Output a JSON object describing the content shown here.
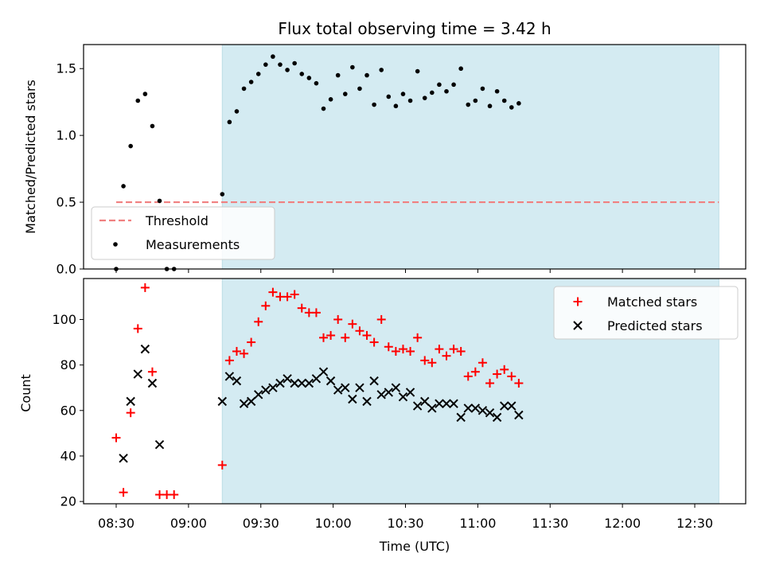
{
  "chart_data": [
    {
      "type": "scatter",
      "title": "Flux total observing time = 3.42 h",
      "ylabel": "Matched/Predicted stars",
      "ylim": [
        0,
        1.68
      ],
      "yticks": [
        "0.0",
        "0.5",
        "1.0",
        "1.5"
      ],
      "threshold": {
        "name": "Threshold",
        "value": 0.5,
        "x_start": "08:30",
        "x_end": "12:40",
        "color": "#f08080"
      },
      "shaded_interval": {
        "start": "09:14",
        "end": "12:40",
        "color": "#d4ebf2"
      },
      "legend": {
        "placement": "lower-left",
        "entries": [
          "Threshold",
          "Measurements"
        ]
      },
      "series": [
        {
          "name": "Measurements",
          "color": "#000000",
          "marker": "dot",
          "points": [
            [
              "08:30",
              0.0
            ],
            [
              "08:33",
              0.62
            ],
            [
              "08:36",
              0.92
            ],
            [
              "08:39",
              1.26
            ],
            [
              "08:42",
              1.31
            ],
            [
              "08:45",
              1.07
            ],
            [
              "08:48",
              0.51
            ],
            [
              "08:51",
              0.0
            ],
            [
              "08:54",
              0.0
            ],
            [
              "09:14",
              0.56
            ],
            [
              "09:17",
              1.1
            ],
            [
              "09:20",
              1.18
            ],
            [
              "09:23",
              1.35
            ],
            [
              "09:26",
              1.4
            ],
            [
              "09:29",
              1.46
            ],
            [
              "09:32",
              1.53
            ],
            [
              "09:35",
              1.59
            ],
            [
              "09:38",
              1.53
            ],
            [
              "09:41",
              1.49
            ],
            [
              "09:44",
              1.54
            ],
            [
              "09:47",
              1.46
            ],
            [
              "09:50",
              1.43
            ],
            [
              "09:53",
              1.39
            ],
            [
              "09:56",
              1.2
            ],
            [
              "09:59",
              1.27
            ],
            [
              "10:02",
              1.45
            ],
            [
              "10:05",
              1.31
            ],
            [
              "10:08",
              1.51
            ],
            [
              "10:11",
              1.35
            ],
            [
              "10:14",
              1.45
            ],
            [
              "10:17",
              1.23
            ],
            [
              "10:20",
              1.49
            ],
            [
              "10:23",
              1.29
            ],
            [
              "10:26",
              1.22
            ],
            [
              "10:29",
              1.31
            ],
            [
              "10:32",
              1.26
            ],
            [
              "10:35",
              1.48
            ],
            [
              "10:38",
              1.28
            ],
            [
              "10:41",
              1.32
            ],
            [
              "10:44",
              1.38
            ],
            [
              "10:47",
              1.33
            ],
            [
              "10:50",
              1.38
            ],
            [
              "10:53",
              1.5
            ],
            [
              "10:56",
              1.23
            ],
            [
              "10:59",
              1.26
            ],
            [
              "11:02",
              1.35
            ],
            [
              "11:05",
              1.22
            ],
            [
              "11:08",
              1.33
            ],
            [
              "11:11",
              1.26
            ],
            [
              "11:14",
              1.21
            ],
            [
              "11:17",
              1.24
            ]
          ]
        }
      ]
    },
    {
      "type": "scatter",
      "xlabel": "Time (UTC)",
      "ylabel": "Count",
      "ylim": [
        19,
        118
      ],
      "yticks": [
        "20",
        "40",
        "60",
        "80",
        "100"
      ],
      "xticks": [
        "08:30",
        "09:00",
        "09:30",
        "10:00",
        "10:30",
        "11:00",
        "11:30",
        "12:00",
        "12:30"
      ],
      "shaded_interval": {
        "start": "09:14",
        "end": "12:40",
        "color": "#d4ebf2"
      },
      "legend": {
        "placement": "top-right",
        "entries": [
          "Matched stars",
          "Predicted stars"
        ]
      },
      "series": [
        {
          "name": "Matched stars",
          "color": "#ff0000",
          "marker": "plus",
          "points": [
            [
              "08:30",
              48
            ],
            [
              "08:33",
              24
            ],
            [
              "08:36",
              59
            ],
            [
              "08:39",
              96
            ],
            [
              "08:42",
              114
            ],
            [
              "08:45",
              77
            ],
            [
              "08:48",
              23
            ],
            [
              "08:51",
              23
            ],
            [
              "08:54",
              23
            ],
            [
              "09:14",
              36
            ],
            [
              "09:17",
              82
            ],
            [
              "09:20",
              86
            ],
            [
              "09:23",
              85
            ],
            [
              "09:26",
              90
            ],
            [
              "09:29",
              99
            ],
            [
              "09:32",
              106
            ],
            [
              "09:35",
              112
            ],
            [
              "09:38",
              110
            ],
            [
              "09:41",
              110
            ],
            [
              "09:44",
              111
            ],
            [
              "09:47",
              105
            ],
            [
              "09:50",
              103
            ],
            [
              "09:53",
              103
            ],
            [
              "09:56",
              92
            ],
            [
              "09:59",
              93
            ],
            [
              "10:02",
              100
            ],
            [
              "10:05",
              92
            ],
            [
              "10:08",
              98
            ],
            [
              "10:11",
              95
            ],
            [
              "10:14",
              93
            ],
            [
              "10:17",
              90
            ],
            [
              "10:20",
              100
            ],
            [
              "10:23",
              88
            ],
            [
              "10:26",
              86
            ],
            [
              "10:29",
              87
            ],
            [
              "10:32",
              86
            ],
            [
              "10:35",
              92
            ],
            [
              "10:38",
              82
            ],
            [
              "10:41",
              81
            ],
            [
              "10:44",
              87
            ],
            [
              "10:47",
              84
            ],
            [
              "10:50",
              87
            ],
            [
              "10:53",
              86
            ],
            [
              "10:56",
              75
            ],
            [
              "10:59",
              77
            ],
            [
              "11:02",
              81
            ],
            [
              "11:05",
              72
            ],
            [
              "11:08",
              76
            ],
            [
              "11:11",
              78
            ],
            [
              "11:14",
              75
            ],
            [
              "11:17",
              72
            ]
          ]
        },
        {
          "name": "Predicted stars",
          "color": "#000000",
          "marker": "x",
          "points": [
            [
              "08:33",
              39
            ],
            [
              "08:36",
              64
            ],
            [
              "08:39",
              76
            ],
            [
              "08:42",
              87
            ],
            [
              "08:45",
              72
            ],
            [
              "08:48",
              45
            ],
            [
              "09:14",
              64
            ],
            [
              "09:17",
              75
            ],
            [
              "09:20",
              73
            ],
            [
              "09:23",
              63
            ],
            [
              "09:26",
              64
            ],
            [
              "09:29",
              67
            ],
            [
              "09:32",
              69
            ],
            [
              "09:35",
              70
            ],
            [
              "09:38",
              72
            ],
            [
              "09:41",
              74
            ],
            [
              "09:44",
              72
            ],
            [
              "09:47",
              72
            ],
            [
              "09:50",
              72
            ],
            [
              "09:53",
              74
            ],
            [
              "09:56",
              77
            ],
            [
              "09:59",
              73
            ],
            [
              "10:02",
              69
            ],
            [
              "10:05",
              70
            ],
            [
              "10:08",
              65
            ],
            [
              "10:11",
              70
            ],
            [
              "10:14",
              64
            ],
            [
              "10:17",
              73
            ],
            [
              "10:20",
              67
            ],
            [
              "10:23",
              68
            ],
            [
              "10:26",
              70
            ],
            [
              "10:29",
              66
            ],
            [
              "10:32",
              68
            ],
            [
              "10:35",
              62
            ],
            [
              "10:38",
              64
            ],
            [
              "10:41",
              61
            ],
            [
              "10:44",
              63
            ],
            [
              "10:47",
              63
            ],
            [
              "10:50",
              63
            ],
            [
              "10:53",
              57
            ],
            [
              "10:56",
              61
            ],
            [
              "10:59",
              61
            ],
            [
              "11:02",
              60
            ],
            [
              "11:05",
              59
            ],
            [
              "11:08",
              57
            ],
            [
              "11:11",
              62
            ],
            [
              "11:14",
              62
            ],
            [
              "11:17",
              58
            ]
          ]
        }
      ]
    }
  ]
}
